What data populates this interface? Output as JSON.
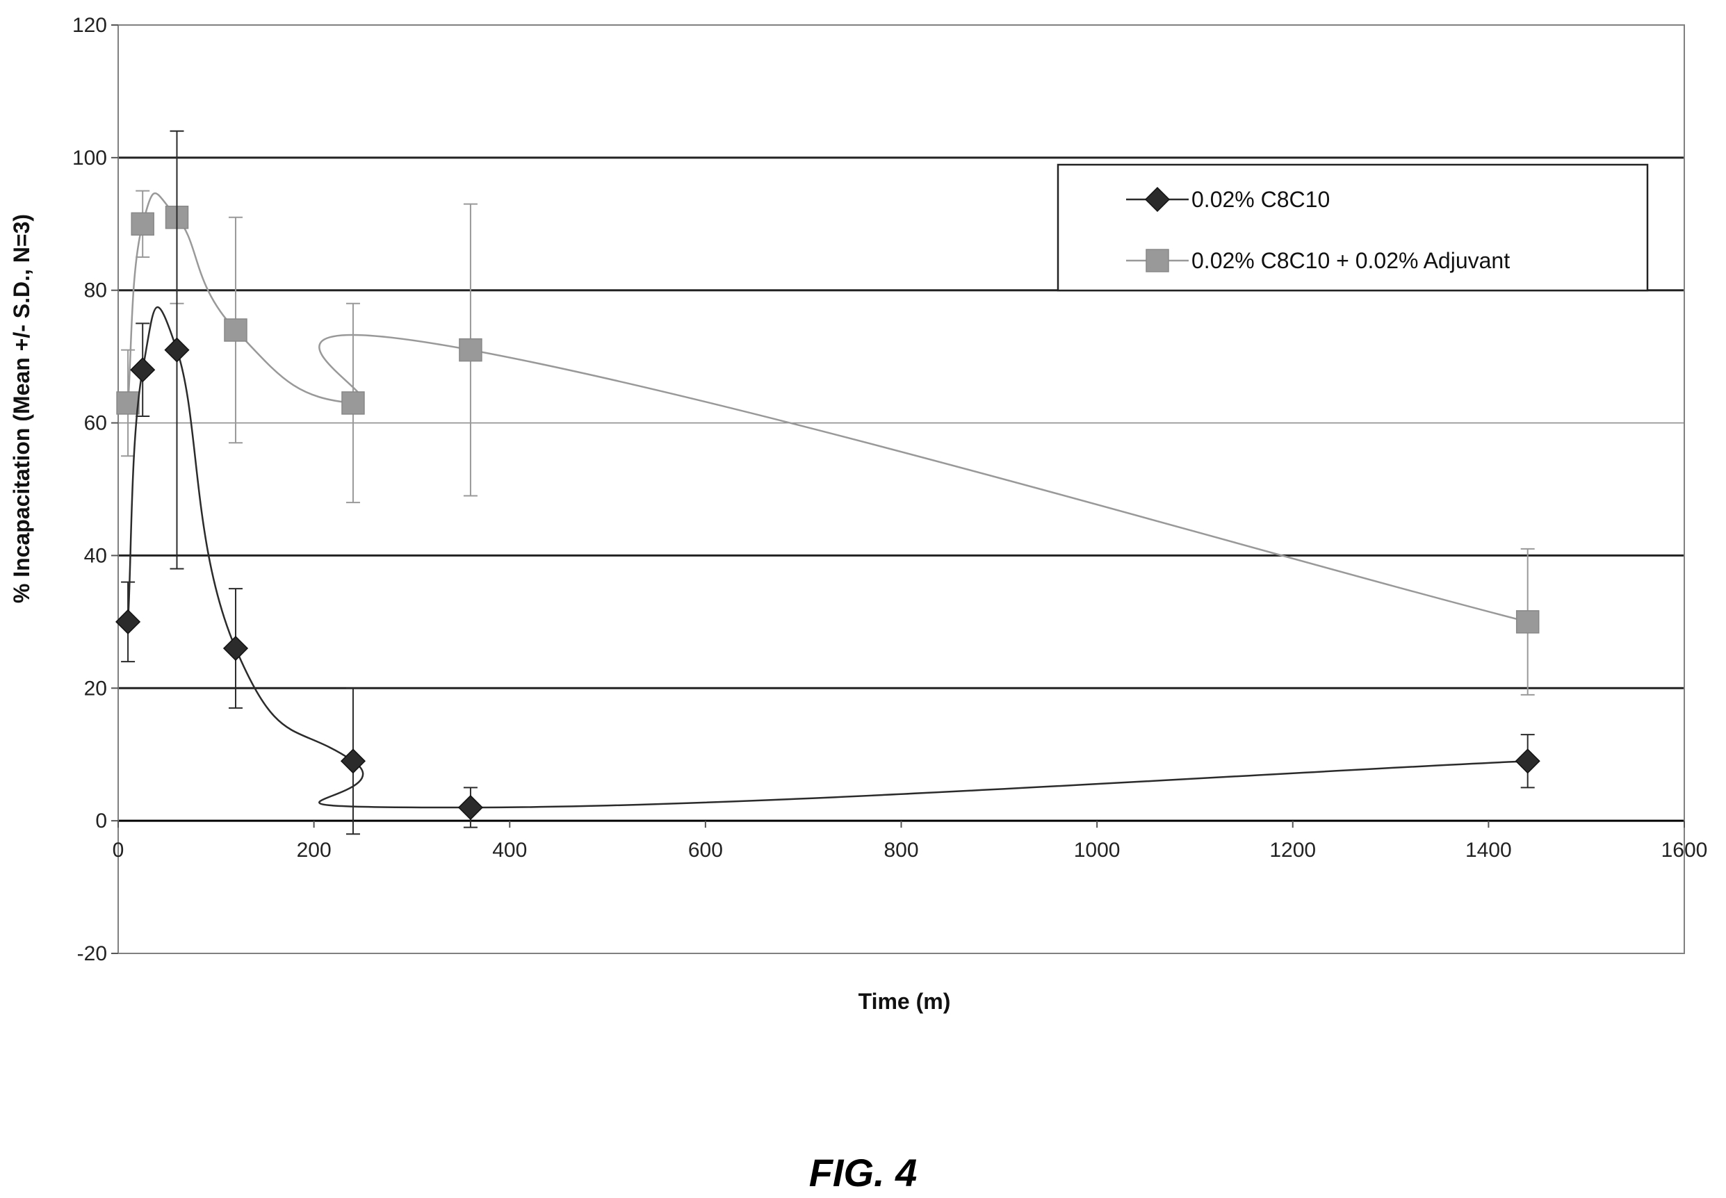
{
  "figure_label": "FIG. 4",
  "chart_data": {
    "type": "line",
    "xlabel": "Time (m)",
    "ylabel": "% Incapacitation (Mean +/- S.D., N=3)",
    "xlim": [
      0,
      1600
    ],
    "ylim": [
      -20,
      120
    ],
    "x_ticks": [
      0,
      200,
      400,
      600,
      800,
      1000,
      1200,
      1400,
      1600
    ],
    "y_ticks": [
      -20,
      0,
      20,
      40,
      60,
      80,
      100,
      120
    ],
    "grid": "horizontal",
    "legend_position": "top-right",
    "series": [
      {
        "name": "0.02% C8C10",
        "marker": "diamond",
        "color": "#2b2b2b",
        "x": [
          10,
          25,
          60,
          120,
          240,
          360,
          1440
        ],
        "y": [
          30,
          68,
          71,
          26,
          9,
          2,
          9
        ],
        "error": [
          6,
          7,
          33,
          9,
          11,
          3,
          4
        ]
      },
      {
        "name": "0.02% C8C10 + 0.02% Adjuvant",
        "marker": "square",
        "color": "#999999",
        "x": [
          10,
          25,
          60,
          120,
          240,
          360,
          1440
        ],
        "y": [
          63,
          90,
          91,
          74,
          63,
          71,
          30
        ],
        "error": [
          8,
          5,
          13,
          17,
          15,
          22,
          11
        ]
      }
    ]
  }
}
